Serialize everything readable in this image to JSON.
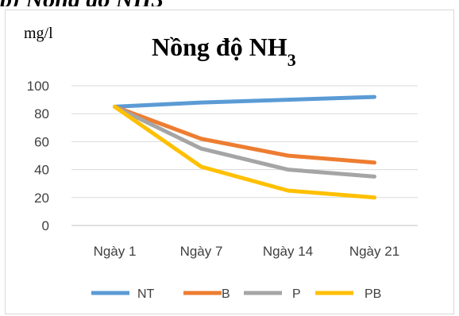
{
  "caption_fragment": "b) Nồng độ NH3",
  "chart_data": {
    "type": "line",
    "title": "Nồng độ NH",
    "title_subscript": "3",
    "unit_label": "mg/l",
    "xlabel": "",
    "ylabel": "",
    "categories": [
      "Ngày 1",
      "Ngày 7",
      "Ngày 14",
      "Ngày 21"
    ],
    "ylim": [
      0,
      100
    ],
    "yticks": [
      0,
      20,
      40,
      60,
      80,
      100
    ],
    "grid": true,
    "legend_position": "bottom",
    "series": [
      {
        "name": "NT",
        "color": "#5B9BD5",
        "values": [
          85,
          88,
          90,
          92
        ]
      },
      {
        "name": "B",
        "color": "#ED7D31",
        "values": [
          85,
          62,
          50,
          45
        ]
      },
      {
        "name": "P",
        "color": "#A5A5A5",
        "values": [
          85,
          55,
          40,
          35
        ]
      },
      {
        "name": "PB",
        "color": "#FFC000",
        "values": [
          85,
          42,
          25,
          20
        ]
      }
    ]
  }
}
